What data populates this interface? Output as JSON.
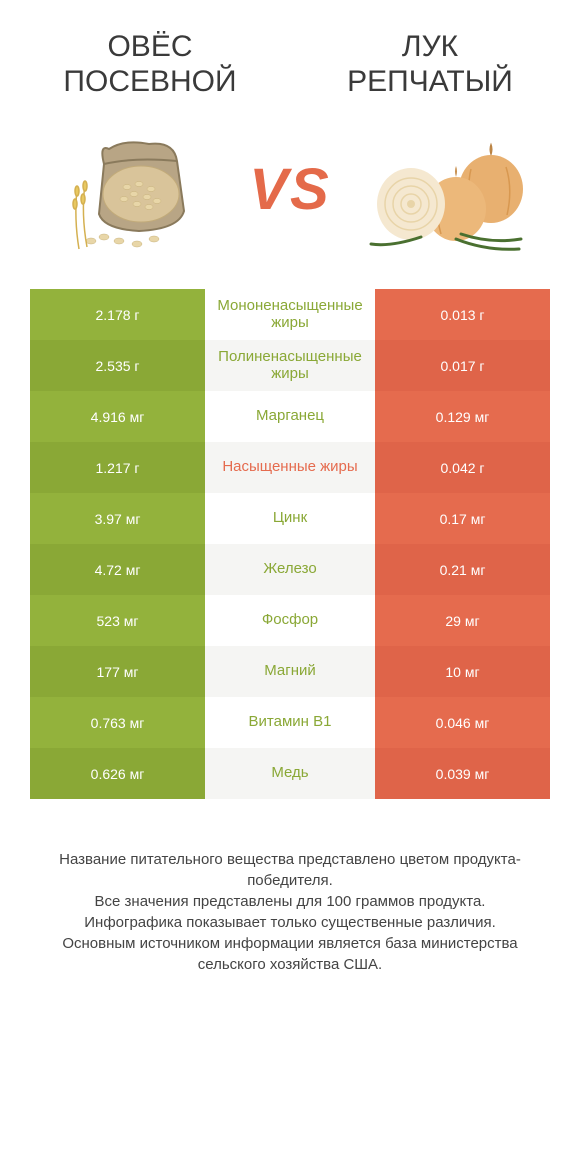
{
  "colors": {
    "green": "#93b23c",
    "green_alt": "#8aa836",
    "orange": "#e56b4e",
    "orange_alt": "#df6449",
    "mid_bg": "#f5f5f3",
    "green_text": "#8aa836",
    "orange_text": "#e56b4e"
  },
  "header": {
    "left_title": "ОВЁС ПОСЕВНОЙ",
    "right_title": "ЛУК РЕПЧАТЫЙ"
  },
  "vs_label": "VS",
  "rows": [
    {
      "left": "2.178 г",
      "mid": "Мононенасыщенные жиры",
      "right": "0.013 г",
      "winner": "left"
    },
    {
      "left": "2.535 г",
      "mid": "Полиненасыщенные жиры",
      "right": "0.017 г",
      "winner": "left"
    },
    {
      "left": "4.916 мг",
      "mid": "Марганец",
      "right": "0.129 мг",
      "winner": "left"
    },
    {
      "left": "1.217 г",
      "mid": "Насыщенные жиры",
      "right": "0.042 г",
      "winner": "right"
    },
    {
      "left": "3.97 мг",
      "mid": "Цинк",
      "right": "0.17 мг",
      "winner": "left"
    },
    {
      "left": "4.72 мг",
      "mid": "Железо",
      "right": "0.21 мг",
      "winner": "left"
    },
    {
      "left": "523 мг",
      "mid": "Фосфор",
      "right": "29 мг",
      "winner": "left"
    },
    {
      "left": "177 мг",
      "mid": "Магний",
      "right": "10 мг",
      "winner": "left"
    },
    {
      "left": "0.763 мг",
      "mid": "Витамин B1",
      "right": "0.046 мг",
      "winner": "left"
    },
    {
      "left": "0.626 мг",
      "mid": "Медь",
      "right": "0.039 мг",
      "winner": "left"
    }
  ],
  "footer_lines": [
    "Название питательного вещества представлено цветом продукта-победителя.",
    "Все значения представлены для 100 граммов продукта.",
    "Инфографика показывает только существенные различия.",
    "Основным источником информации является база министерства сельского хозяйства США."
  ]
}
